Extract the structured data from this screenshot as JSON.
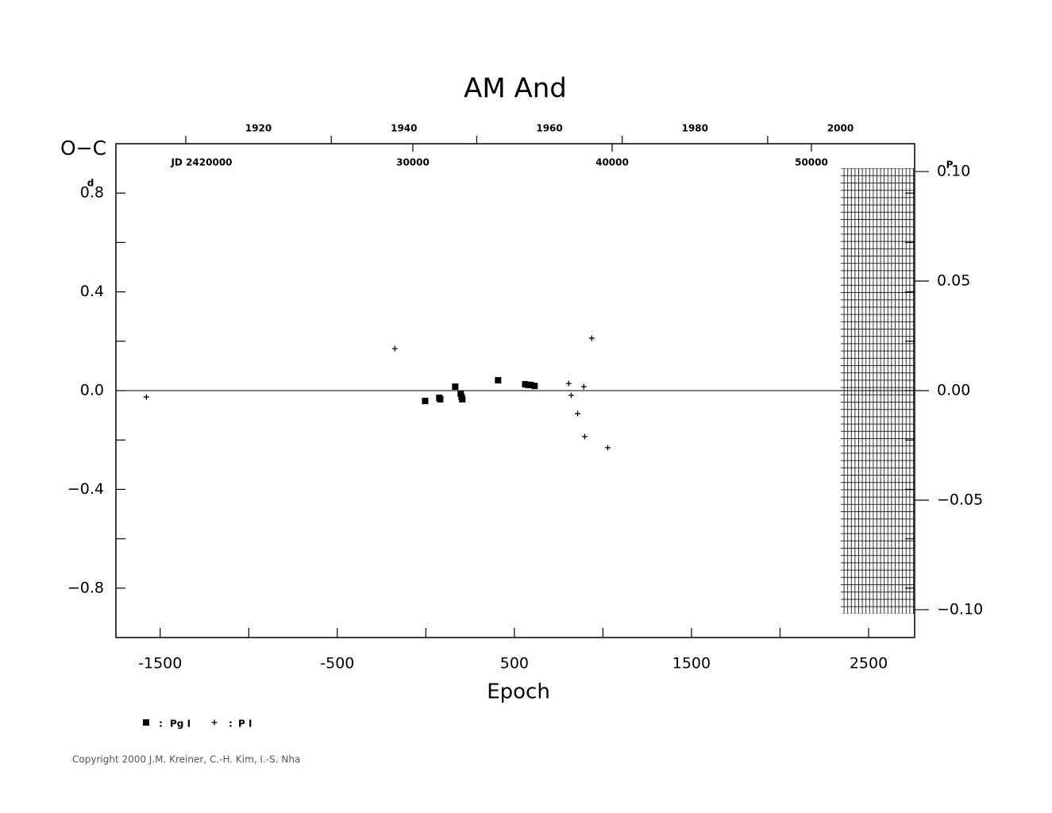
{
  "chart_data": {
    "type": "scatter",
    "title": "AM And",
    "y_label": "O−C",
    "y_unit": "d",
    "y2_unit": "P",
    "x_label": "Epoch",
    "jd_label": "JD 2420000",
    "copyright": "Copyright 2000 J.M. Kreiner, C.-H. Kim, I.-S. Nha",
    "xlim": [
      -1750,
      2760
    ],
    "xticks": [
      -1500,
      -500,
      500,
      1500,
      2500
    ],
    "xminor_ticks": [
      -1000,
      0,
      1000,
      2000
    ],
    "ylim": [
      -1,
      1
    ],
    "yticks": [
      {
        "value": 0.8,
        "label": "0.8"
      },
      {
        "value": 0.4,
        "label": "0.4"
      },
      {
        "value": 0,
        "label": "0.0"
      },
      {
        "value": -0.4,
        "label": "−0.4"
      },
      {
        "value": -0.8,
        "label": "−0.8"
      }
    ],
    "yminor_ticks": [
      0.6,
      0.2,
      -0.2,
      -0.6
    ],
    "y2lim": [
      -0.1127,
      0.1127
    ],
    "y2ticks": [
      {
        "value": 0.1,
        "label": "0.10"
      },
      {
        "value": 0.05,
        "label": "0.05"
      },
      {
        "value": 0,
        "label": "0.00"
      },
      {
        "value": -0.05,
        "label": "−0.05"
      },
      {
        "value": -0.1,
        "label": "−0.10"
      }
    ],
    "year_lim": [
      1900.4,
      2010.2
    ],
    "year_ticks": [
      1920,
      1940,
      1960,
      1980,
      2000
    ],
    "year_minor_ticks": [
      1910,
      1930,
      1950,
      1970,
      1990
    ],
    "jd_lim": [
      15100,
      55180
    ],
    "jd_ticks": [
      30000,
      40000,
      50000
    ],
    "series": [
      {
        "name": "Pg I",
        "marker": "square",
        "color": "#000000",
        "x": [
          -4,
          76,
          81,
          166,
          197,
          202,
          206,
          408,
          561,
          578,
          592,
          614
        ],
        "values": [
          -0.042,
          -0.029,
          -0.035,
          0.016,
          -0.013,
          -0.026,
          -0.035,
          0.042,
          0.026,
          0.023,
          0.023,
          0.019
        ]
      },
      {
        "name": "P I",
        "marker": "plus",
        "color": "#000000",
        "x": [
          -1578,
          -175,
          807,
          821,
          857,
          892,
          897,
          937,
          1027
        ],
        "values": [
          -0.026,
          0.17,
          0.029,
          -0.019,
          -0.093,
          0.016,
          -0.186,
          0.212,
          -0.231
        ]
      }
    ]
  }
}
